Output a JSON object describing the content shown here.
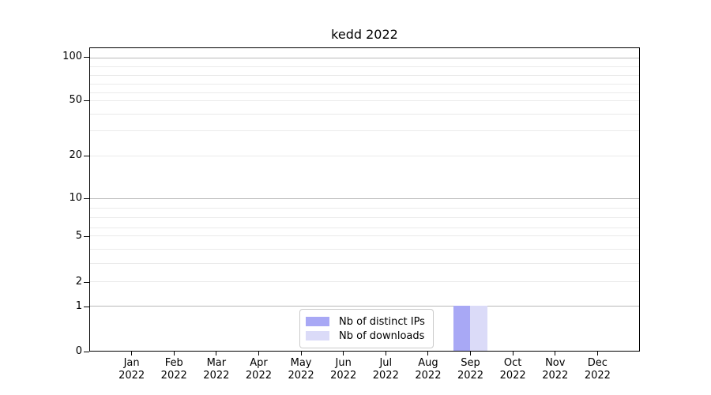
{
  "chart_data": {
    "type": "bar",
    "title": "kedd 2022",
    "categories": [
      "Jan 2022",
      "Feb 2022",
      "Mar 2022",
      "Apr 2022",
      "May 2022",
      "Jun 2022",
      "Jul 2022",
      "Aug 2022",
      "Sep 2022",
      "Oct 2022",
      "Nov 2022",
      "Dec 2022"
    ],
    "series": [
      {
        "name": "Nb of distinct IPs",
        "color": "#a8a8f5",
        "values": [
          0,
          0,
          0,
          0,
          0,
          0,
          0,
          0,
          1,
          0,
          0,
          0
        ]
      },
      {
        "name": "Nb of downloads",
        "color": "#dbdbf8",
        "values": [
          0,
          0,
          0,
          0,
          0,
          0,
          0,
          0,
          1,
          0,
          0,
          0
        ]
      }
    ],
    "xlabel": "",
    "ylabel": "",
    "yscale": "symlog",
    "ytick_labels": [
      "100",
      "50",
      "20",
      "10",
      "5",
      "2",
      "1",
      "0"
    ],
    "ylim": [
      0,
      115
    ],
    "grid": "horizontal",
    "legend_position": "lower center (inside axes)"
  },
  "legend": {
    "items": [
      {
        "label": "Nb of distinct IPs",
        "color": "#a8a8f5"
      },
      {
        "label": "Nb of downloads",
        "color": "#dbdbf8"
      }
    ]
  },
  "colors": {
    "background": "#ffffff",
    "bar_distinct_ips": "#a8a8f5",
    "bar_downloads": "#dbdbf8",
    "major_gridline": "#b9b9b9",
    "minor_gridline": "#eaeaea",
    "axis_spine": "#000000",
    "legend_border": "#cbcbcb",
    "text": "#000000"
  }
}
